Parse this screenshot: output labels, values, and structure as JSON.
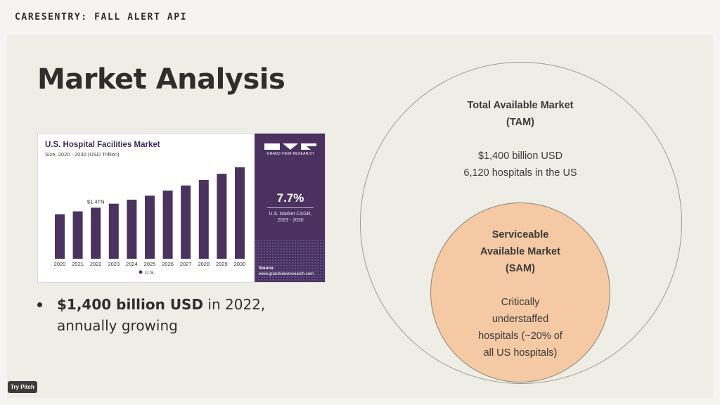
{
  "header": {
    "deck_title": "CARESENTRY: FALL ALERT API"
  },
  "slide": {
    "title": "Market Analysis",
    "bullet": {
      "bold": "$1,400 billion USD",
      "rest": " in 2022, annually growing"
    },
    "tam": {
      "heading_line1": "Total Available Market",
      "heading_line2": "(TAM)",
      "line1": "$1,400 billion USD",
      "line2": "6,120 hospitals in the US"
    },
    "sam": {
      "heading_line1": "Serviceable",
      "heading_line2": "Available Market",
      "heading_line3": "(SAM)",
      "line1": "Critically",
      "line2": "understaffed",
      "line3": "hospitals (~20% of",
      "line4": "all US hospitals)"
    }
  },
  "chart_image": {
    "title": "U.S. Hospital Facilities Market",
    "subtitle": "Size, 2020 - 2030 (USD Trillion)",
    "brand": "GRAND VIEW RESEARCH",
    "cagr_value": "7.7%",
    "cagr_label_line1": "U.S. Market CAGR,",
    "cagr_label_line2": "2023 - 2030",
    "source_label": "Source:",
    "source_url": "www.grandviewresearch.com",
    "legend": "U.S.",
    "bar_color": "#4b3360"
  },
  "chart_data": {
    "type": "bar",
    "title": "U.S. Hospital Facilities Market",
    "subtitle": "Size, 2020 - 2030 (USD Trillion)",
    "categories": [
      "2020",
      "2021",
      "2022",
      "2023",
      "2024",
      "2025",
      "2026",
      "2027",
      "2028",
      "2029",
      "2030"
    ],
    "series": [
      {
        "name": "U.S.",
        "values": [
          1.22,
          1.3,
          1.4,
          1.51,
          1.62,
          1.73,
          1.87,
          2.01,
          2.16,
          2.33,
          2.51
        ]
      }
    ],
    "annotations": [
      {
        "category": "2022",
        "text": "$1.4TN"
      }
    ],
    "ylim": [
      0,
      2.7
    ],
    "grid": false,
    "legend": "bottom"
  },
  "footer": {
    "try_pitch": "Try Pitch"
  }
}
